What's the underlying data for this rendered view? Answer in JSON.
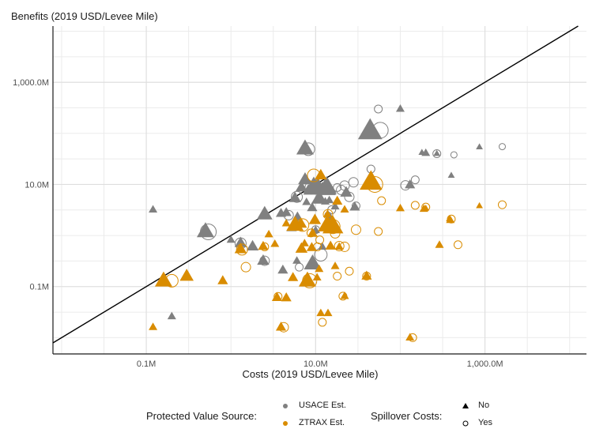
{
  "chart_data": {
    "type": "scatter",
    "ylabel": "Benefits (2019 USD/Levee Mile)",
    "xlabel": "Costs (2019 USD/Levee Mile)",
    "x_scale": "log10",
    "y_scale": "log10",
    "x_ticks": [
      {
        "value": 0.1,
        "label": "0.1M"
      },
      {
        "value": 10,
        "label": "10.0M"
      },
      {
        "value": 1000,
        "label": "1,000.0M"
      }
    ],
    "y_ticks": [
      {
        "value": 0.1,
        "label": "0.1M"
      },
      {
        "value": 10,
        "label": "10.0M"
      },
      {
        "value": 1000,
        "label": "1,000.0M"
      }
    ],
    "xlim_millions": [
      0.0079,
      15800
    ],
    "ylim_millions": [
      0.0048,
      12600
    ],
    "reference_line": "benefits = costs",
    "grid": true,
    "legend": {
      "position": "bottom",
      "color_title": "Protected Value Source:",
      "color_entries": [
        {
          "label": "USACE Est.",
          "color": "#808080"
        },
        {
          "label": "ZTRAX Est.",
          "color": "#D98C00"
        }
      ],
      "shape_title": "Spillover Costs:",
      "shape_entries": [
        {
          "label": "No",
          "shape": "triangle"
        },
        {
          "label": "Yes",
          "shape": "open-circle"
        }
      ]
    },
    "series": [
      {
        "source": "USACE Est.",
        "spillover": "No",
        "color": "#808080",
        "points": [
          [
            0.12,
            3.2,
            5
          ],
          [
            1.3,
            0.71,
            7
          ],
          [
            2.4,
            0.32,
            7
          ],
          [
            8.2,
            7.9,
            6
          ],
          [
            5.7,
            5.4,
            7
          ],
          [
            4.5,
            2.8,
            6
          ],
          [
            7.5,
            12.4,
            8
          ],
          [
            14,
            7.8,
            9
          ],
          [
            11,
            5.3,
            9
          ],
          [
            6.8,
            8.7,
            7
          ],
          [
            9.5,
            8.6,
            12
          ],
          [
            15,
            7.7,
            7
          ],
          [
            23,
            6.9,
            7
          ],
          [
            9.2,
            0.28,
            10
          ],
          [
            12,
            0.6,
            5
          ],
          [
            6,
            0.32,
            5
          ],
          [
            4.1,
            0.21,
            6
          ],
          [
            1,
            0.82,
            5
          ],
          [
            1.8,
            0.61,
            7
          ],
          [
            5.2,
            1.42,
            6
          ],
          [
            44,
            110,
            14
          ],
          [
            10,
            1.27,
            5
          ],
          [
            15,
            2.2,
            5
          ],
          [
            3.9,
            2.7,
            6
          ],
          [
            6.1,
            2.3,
            6
          ],
          [
            9.1,
            3.5,
            6
          ],
          [
            13,
            4.6,
            5
          ],
          [
            7.8,
            4.5,
            5
          ],
          [
            17,
            3.7,
            5
          ],
          [
            10,
            10.3,
            5
          ],
          [
            12,
            8.8,
            6
          ],
          [
            7.5,
            50,
            10
          ],
          [
            100,
            300,
            5
          ],
          [
            180,
            42,
            4
          ],
          [
            270,
            40,
            4
          ],
          [
            400,
            15,
            4
          ],
          [
            860,
            54,
            4
          ],
          [
            0.5,
            1.2,
            10
          ],
          [
            2.5,
            2.6,
            9
          ],
          [
            13.5,
            9.2,
            11
          ],
          [
            10.6,
            9.5,
            9
          ],
          [
            14.5,
            4.9,
            5
          ],
          [
            29,
            3.6,
            6
          ],
          [
            130,
            9.8,
            6
          ],
          [
            200,
            41,
            5
          ],
          [
            0.2,
            0.026,
            5
          ]
        ]
      },
      {
        "source": "USACE Est.",
        "spillover": "Yes",
        "color": "#808080",
        "points": [
          [
            55,
            300,
            5
          ],
          [
            1.3,
            0.7,
            7
          ],
          [
            2.5,
            0.32,
            6
          ],
          [
            8.9,
            8.6,
            8
          ],
          [
            6,
            5.7,
            7
          ],
          [
            4.8,
            2.5,
            6
          ],
          [
            8.2,
            49,
            8
          ],
          [
            11.5,
            0.42,
            8
          ],
          [
            6.4,
            0.24,
            5
          ],
          [
            0.54,
            1.18,
            10
          ],
          [
            22,
            9.5,
            6
          ],
          [
            15.5,
            3.2,
            5
          ],
          [
            18,
            8.7,
            5
          ],
          [
            20,
            7.8,
            6
          ],
          [
            25,
            5.7,
            6
          ],
          [
            30,
            3.8,
            5
          ],
          [
            45,
            20,
            5
          ],
          [
            28,
            11,
            6
          ],
          [
            115,
            9.6,
            6
          ],
          [
            150,
            12.3,
            5
          ],
          [
            270,
            40,
            5
          ],
          [
            430,
            38,
            4
          ],
          [
            1600,
            55,
            4
          ],
          [
            58,
            115,
            10
          ],
          [
            10,
            1.3,
            5
          ],
          [
            6.2,
            1.6,
            5
          ],
          [
            14,
            2.5,
            4
          ]
        ]
      },
      {
        "source": "ZTRAX Est.",
        "spillover": "No",
        "color": "#D98C00",
        "points": [
          [
            0.12,
            0.016,
            5
          ],
          [
            0.8,
            0.13,
            6
          ],
          [
            0.16,
            0.13,
            10
          ],
          [
            0.3,
            0.16,
            8
          ],
          [
            1.3,
            0.54,
            7
          ],
          [
            2.4,
            0.61,
            6
          ],
          [
            3.5,
            0.061,
            6
          ],
          [
            3.9,
            0.016,
            6
          ],
          [
            5.4,
            0.15,
            6
          ],
          [
            6.8,
            0.55,
            7
          ],
          [
            8,
            0.13,
            10
          ],
          [
            10.4,
            0.15,
            5
          ],
          [
            11,
            0.22,
            5
          ],
          [
            15,
            0.62,
            6
          ],
          [
            17,
            0.25,
            5
          ],
          [
            22,
            0.065,
            5
          ],
          [
            4.5,
            0.06,
            6
          ],
          [
            11.5,
            0.03,
            5
          ],
          [
            14,
            0.03,
            5
          ],
          [
            19,
            0.6,
            5
          ],
          [
            40,
            0.16,
            6
          ],
          [
            45,
            11,
            13
          ],
          [
            11.5,
            15,
            7
          ],
          [
            13.8,
            2.6,
            5
          ],
          [
            16,
            1.5,
            12
          ],
          [
            9.8,
            2,
            7
          ],
          [
            6.7,
            1.7,
            7
          ],
          [
            7.4,
            0.7,
            5
          ],
          [
            9,
            0.58,
            6
          ],
          [
            3.3,
            0.68,
            5
          ],
          [
            2.8,
            1.05,
            5
          ],
          [
            4.5,
            1.72,
            5
          ],
          [
            18,
            4.7,
            6
          ],
          [
            22,
            3.2,
            5
          ],
          [
            100,
            3.4,
            5
          ],
          [
            190,
            3.3,
            5
          ],
          [
            390,
            2,
            5
          ],
          [
            290,
            0.65,
            5
          ],
          [
            130,
            0.01,
            5
          ],
          [
            13.8,
            1.6,
            11
          ],
          [
            16,
            1.3,
            5
          ],
          [
            9.2,
            1.1,
            6
          ],
          [
            5.7,
            1.6,
            10
          ],
          [
            200,
            3.4,
            4
          ],
          [
            860,
            3.8,
            4
          ],
          [
            380,
            2.1,
            4
          ]
        ]
      },
      {
        "source": "ZTRAX Est.",
        "spillover": "Yes",
        "color": "#D98C00",
        "points": [
          [
            0.2,
            0.13,
            8
          ],
          [
            1.35,
            0.53,
            7
          ],
          [
            1.5,
            0.24,
            6
          ],
          [
            2.5,
            0.6,
            5
          ],
          [
            3.6,
            0.064,
            5
          ],
          [
            4.2,
            0.016,
            6
          ],
          [
            7,
            1.6,
            8
          ],
          [
            8.5,
            0.13,
            9
          ],
          [
            10.5,
            0.6,
            5
          ],
          [
            9.5,
            15,
            8
          ],
          [
            12,
            0.02,
            5
          ],
          [
            14,
            2.6,
            6
          ],
          [
            16,
            1.5,
            9
          ],
          [
            17,
            1.1,
            6
          ],
          [
            18,
            0.16,
            5
          ],
          [
            21,
            0.065,
            5
          ],
          [
            19,
            0.62,
            6
          ],
          [
            25,
            0.2,
            5
          ],
          [
            22,
            0.6,
            6
          ],
          [
            30,
            1.3,
            6
          ],
          [
            40,
            0.16,
            5
          ],
          [
            50,
            10,
            10
          ],
          [
            55,
            1.2,
            5
          ],
          [
            60,
            4.8,
            5
          ],
          [
            150,
            3.9,
            5
          ],
          [
            200,
            3.6,
            5
          ],
          [
            400,
            2.1,
            5
          ],
          [
            480,
            0.66,
            5
          ],
          [
            1600,
            4,
            5
          ],
          [
            140,
            0.01,
            5
          ],
          [
            8.8,
            1.12,
            5
          ],
          [
            11.2,
            0.82,
            5
          ]
        ]
      }
    ]
  }
}
